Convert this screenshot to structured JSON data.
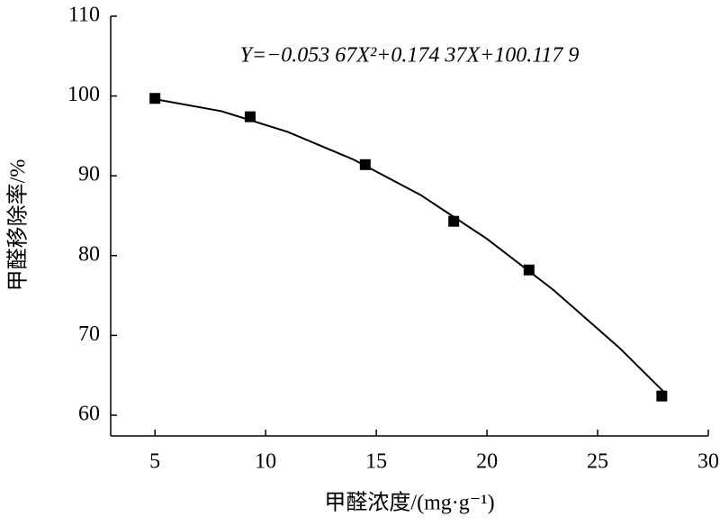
{
  "chart_data": {
    "type": "scatter",
    "annotation": "Y=−0.053 67X²+0.174 37X+100.117 9",
    "x_label": "甲醛浓度/(mg·g⁻¹)",
    "y_label": "甲醛移除率/%",
    "points": {
      "x": [
        5,
        9.3,
        14.5,
        18.5,
        21.9,
        27.9
      ],
      "values": [
        99.7,
        97.4,
        91.4,
        84.3,
        78.2,
        62.4
      ],
      "color": "#000000"
    },
    "curve": {
      "x": [
        5,
        8,
        11,
        14,
        17,
        20,
        23,
        26,
        28
      ],
      "values": [
        99.6,
        98.1,
        95.5,
        92.0,
        87.6,
        82.1,
        75.7,
        68.4,
        62.9
      ],
      "color": "#000000"
    },
    "xlim": [
      3,
      30
    ],
    "xticks": [
      5,
      10,
      15,
      20,
      25,
      30
    ],
    "ylim": [
      57.4,
      110
    ],
    "yticks": [
      60,
      70,
      80,
      90,
      100,
      110
    ]
  }
}
